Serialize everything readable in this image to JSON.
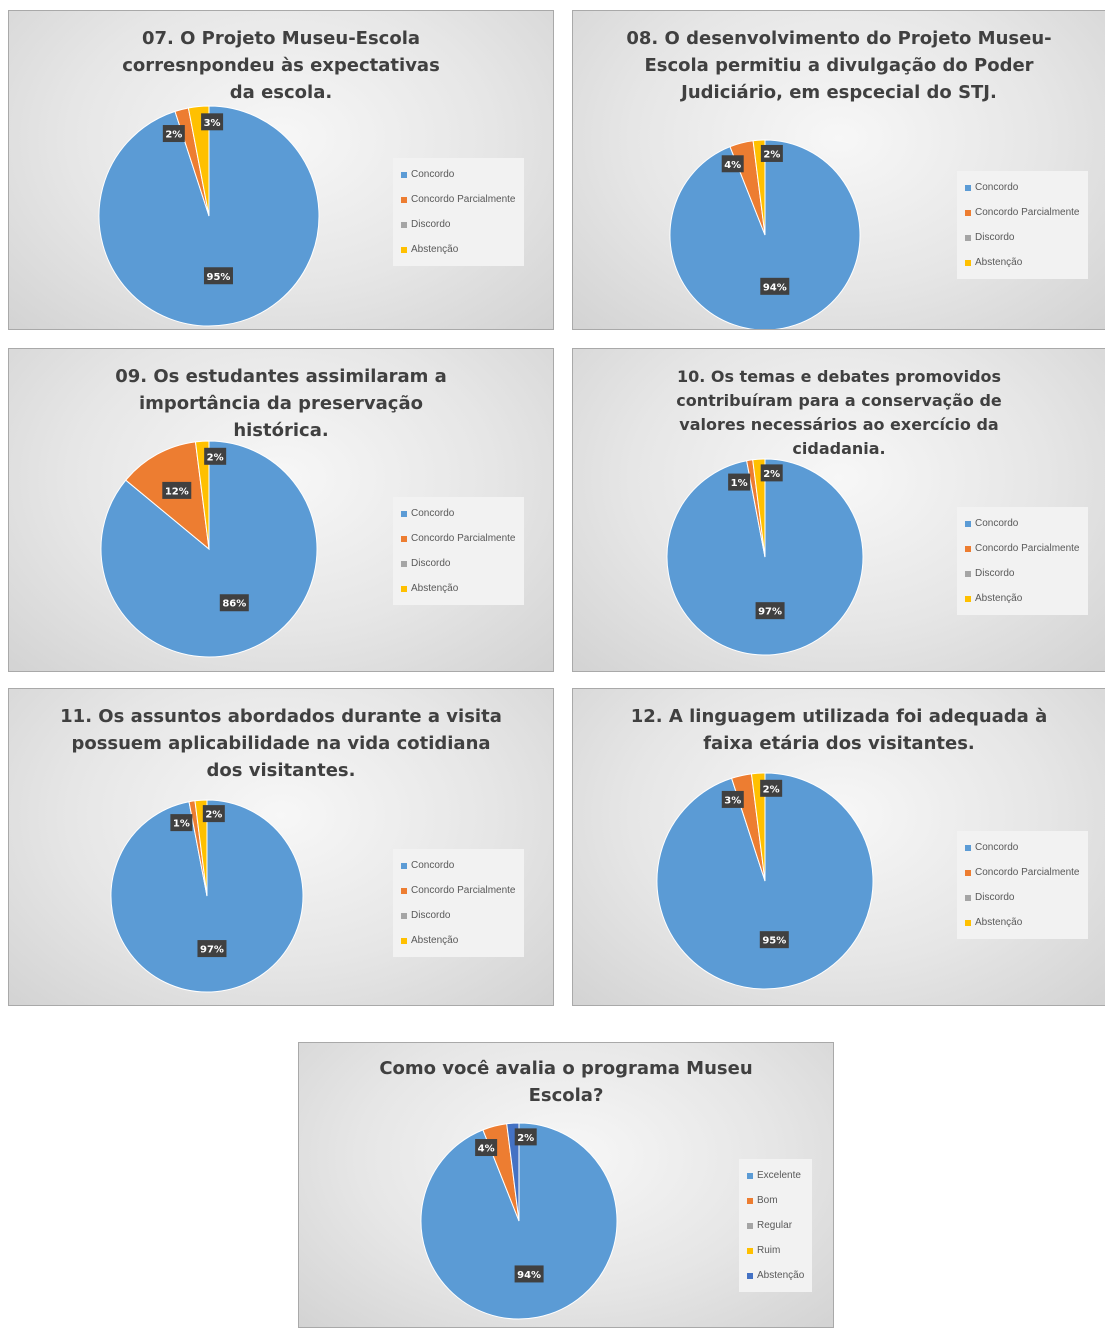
{
  "colors": {
    "blue": "#5b9bd5",
    "orange": "#ed7d31",
    "gray": "#a5a5a5",
    "yellow": "#ffc000",
    "darkblue": "#4472c4",
    "label_bg": "#404040"
  },
  "chart_data": [
    {
      "type": "pie",
      "title": "07. O Projeto Museu-Escola corresnpondeu às expectativas da escola.",
      "categories": [
        "Concordo",
        "Concordo Parcialmente",
        "Discordo",
        "Abstenção"
      ],
      "values": [
        95,
        2,
        0,
        3
      ],
      "labels": [
        "95%",
        "2%",
        "",
        "3%"
      ],
      "legend_position": "right"
    },
    {
      "type": "pie",
      "title": "08. O desenvolvimento do Projeto Museu-Escola permitiu a divulgação do Poder Judiciário, em espcecial do STJ.",
      "categories": [
        "Concordo",
        "Concordo Parcialmente",
        "Discordo",
        "Abstenção"
      ],
      "values": [
        94,
        4,
        0,
        2
      ],
      "labels": [
        "94%",
        "4%",
        "",
        "2%"
      ],
      "legend_position": "right"
    },
    {
      "type": "pie",
      "title": "09. Os estudantes assimilaram a importância da preservação histórica.",
      "categories": [
        "Concordo",
        "Concordo Parcialmente",
        "Discordo",
        "Abstenção"
      ],
      "values": [
        86,
        12,
        0,
        2
      ],
      "labels": [
        "86%",
        "12%",
        "",
        "2%"
      ],
      "legend_position": "right"
    },
    {
      "type": "pie",
      "title": "10. Os temas e debates promovidos contribuíram para a conservação de valores necessários ao exercício da cidadania.",
      "categories": [
        "Concordo",
        "Concordo Parcialmente",
        "Discordo",
        "Abstenção"
      ],
      "values": [
        97,
        1,
        0,
        2
      ],
      "labels": [
        "97%",
        "1%",
        "",
        "2%"
      ],
      "legend_position": "right"
    },
    {
      "type": "pie",
      "title": "11. Os assuntos abordados durante a visita possuem aplicabilidade na vida cotidiana dos visitantes.",
      "categories": [
        "Concordo",
        "Concordo Parcialmente",
        "Discordo",
        "Abstenção"
      ],
      "values": [
        97,
        1,
        0,
        2
      ],
      "labels": [
        "97%",
        "1%",
        "",
        "2%"
      ],
      "legend_position": "right"
    },
    {
      "type": "pie",
      "title": "12. A linguagem utilizada foi adequada à faixa etária dos visitantes.",
      "categories": [
        "Concordo",
        "Concordo Parcialmente",
        "Discordo",
        "Abstenção"
      ],
      "values": [
        95,
        3,
        0,
        2
      ],
      "labels": [
        "95%",
        "3%",
        "",
        "2%"
      ],
      "legend_position": "right"
    },
    {
      "type": "pie",
      "title": "Como você avalia o programa Museu Escola?",
      "categories": [
        "Excelente",
        "Bom",
        "Regular",
        "Ruim",
        "Abstenção"
      ],
      "values": [
        94,
        4,
        0,
        0,
        2
      ],
      "labels": [
        "94%",
        "4%",
        "",
        "",
        "2%"
      ],
      "legend_position": "right"
    }
  ]
}
